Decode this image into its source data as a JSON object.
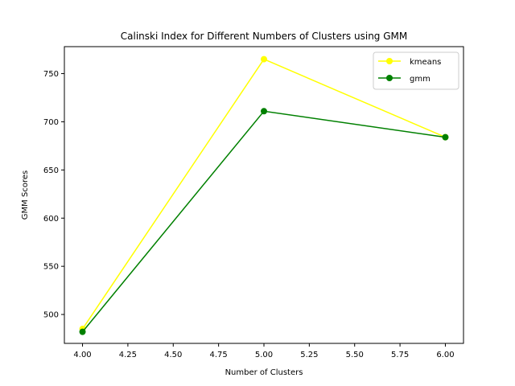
{
  "chart_data": {
    "type": "line",
    "title": "Calinski Index for Different Numbers of Clusters using GMM",
    "xlabel": "Number of Clusters",
    "ylabel": "GMM Scores",
    "xlim": [
      3.9,
      6.1
    ],
    "ylim": [
      470,
      778
    ],
    "xticks": [
      4.0,
      4.25,
      4.5,
      4.75,
      5.0,
      5.25,
      5.5,
      5.75,
      6.0
    ],
    "xtick_labels": [
      "4.00",
      "4.25",
      "4.50",
      "4.75",
      "5.00",
      "5.25",
      "5.50",
      "5.75",
      "6.00"
    ],
    "yticks": [
      500,
      550,
      600,
      650,
      700,
      750
    ],
    "ytick_labels": [
      "500",
      "550",
      "600",
      "650",
      "700",
      "750"
    ],
    "grid": false,
    "legend_position": "top-right",
    "series": [
      {
        "name": "kmeans",
        "color": "#ffff00",
        "x": [
          4,
          5,
          6
        ],
        "y": [
          485,
          765,
          684
        ]
      },
      {
        "name": "gmm",
        "color": "#008000",
        "x": [
          4,
          5,
          6
        ],
        "y": [
          482,
          711,
          684
        ]
      }
    ]
  }
}
